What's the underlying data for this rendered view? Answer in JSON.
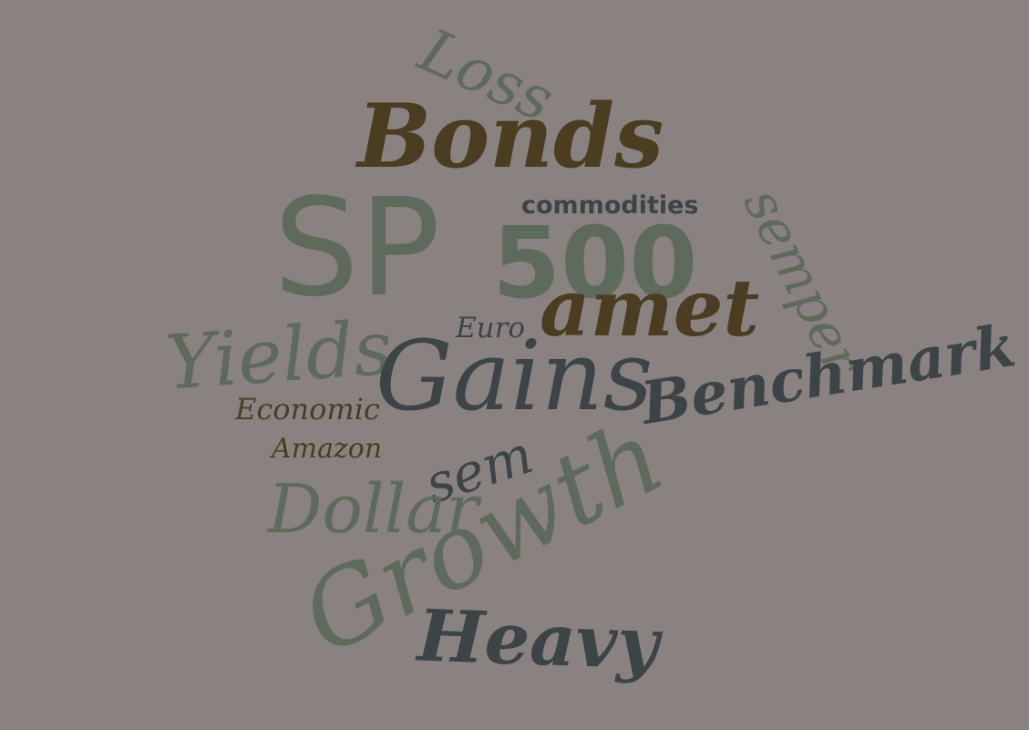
{
  "palette": {
    "background": "#8a8280",
    "green_gray": "#5e6a5c",
    "dark_slate": "#3c4448",
    "dark_olive": "#4a3d22"
  },
  "words": [
    {
      "id": "loss",
      "text": "Loss",
      "color": "#5e6a5c"
    },
    {
      "id": "bonds",
      "text": "Bonds",
      "color": "#4a3d22"
    },
    {
      "id": "commodities",
      "text": "commodities",
      "color": "#3c4448"
    },
    {
      "id": "sp",
      "text": "SP",
      "color": "#5e6a5c"
    },
    {
      "id": "500",
      "text": "500",
      "color": "#5e6a5c"
    },
    {
      "id": "semper",
      "text": "semper",
      "color": "#5e6a5c"
    },
    {
      "id": "amet",
      "text": "amet",
      "color": "#4a3d22"
    },
    {
      "id": "euro",
      "text": "Euro",
      "color": "#3c4448"
    },
    {
      "id": "yields",
      "text": "Yields",
      "color": "#5e6a5c"
    },
    {
      "id": "gains",
      "text": "Gains",
      "color": "#3c4448"
    },
    {
      "id": "benchmark",
      "text": "Benchmark",
      "color": "#3c4448"
    },
    {
      "id": "economic",
      "text": "Economic",
      "color": "#4a3d22"
    },
    {
      "id": "amazon",
      "text": "Amazon",
      "color": "#4a3d22"
    },
    {
      "id": "sem",
      "text": "sem",
      "color": "#3c4448"
    },
    {
      "id": "dollar",
      "text": "Dollar",
      "color": "#5e6a5c"
    },
    {
      "id": "growth",
      "text": "Growth",
      "color": "#5e6a5c"
    },
    {
      "id": "heavy",
      "text": "Heavy",
      "color": "#3c4448"
    }
  ]
}
